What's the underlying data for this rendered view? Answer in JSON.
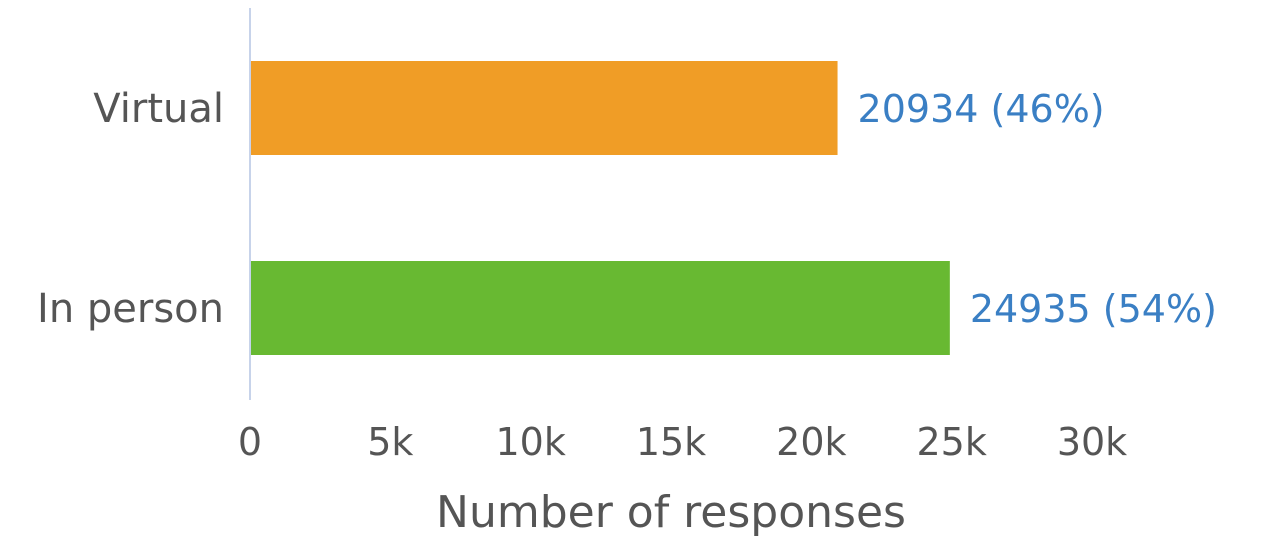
{
  "chart_data": {
    "type": "bar",
    "orientation": "horizontal",
    "categories": [
      "Virtual",
      "In person"
    ],
    "values": [
      20934,
      24935
    ],
    "data_labels": [
      "20934 (46%)",
      "24935 (54%)"
    ],
    "bar_colors": [
      "#f09d26",
      "#68b932"
    ],
    "label_color": "#3a7fc4",
    "xlabel": "Number of responses",
    "ylabel": "",
    "xlim": [
      0,
      30000
    ],
    "x_ticks": [
      0,
      5000,
      10000,
      15000,
      20000,
      25000,
      30000
    ],
    "x_tick_labels": [
      "0",
      "5k",
      "10k",
      "15k",
      "20k",
      "25k",
      "30k"
    ],
    "grid": false,
    "legend": "none"
  }
}
